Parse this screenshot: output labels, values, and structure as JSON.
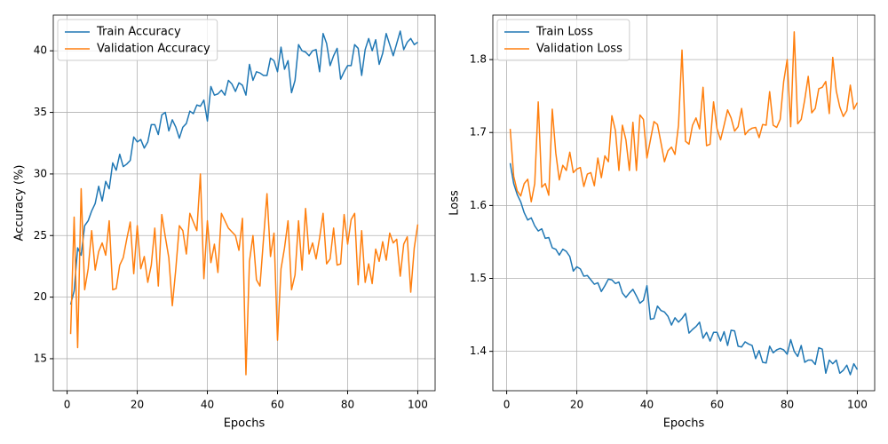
{
  "chart_data": [
    {
      "type": "line",
      "xlabel": "Epochs",
      "ylabel": "Accuracy (%)",
      "x": [
        1,
        2,
        3,
        4,
        5,
        6,
        7,
        8,
        9,
        10,
        11,
        12,
        13,
        14,
        15,
        16,
        17,
        18,
        19,
        20,
        21,
        22,
        23,
        24,
        25,
        26,
        27,
        28,
        29,
        30,
        31,
        32,
        33,
        34,
        35,
        36,
        37,
        38,
        39,
        40,
        41,
        42,
        43,
        44,
        45,
        46,
        47,
        48,
        49,
        50,
        51,
        52,
        53,
        54,
        55,
        56,
        57,
        58,
        59,
        60,
        61,
        62,
        63,
        64,
        65,
        66,
        67,
        68,
        69,
        70,
        71,
        72,
        73,
        74,
        75,
        76,
        77,
        78,
        79,
        80,
        81,
        82,
        83,
        84,
        85,
        86,
        87,
        88,
        89,
        90,
        91,
        92,
        93,
        94,
        95,
        96,
        97,
        98,
        99,
        100
      ],
      "series": [
        {
          "name": "Train Accuracy",
          "color": "#1f77b4",
          "values": [
            19.4,
            20.5,
            24.0,
            23.4,
            25.8,
            26.2,
            27.0,
            27.6,
            29.0,
            27.8,
            29.4,
            28.8,
            30.9,
            30.3,
            31.6,
            30.6,
            30.8,
            31.1,
            33.0,
            32.6,
            32.8,
            32.1,
            32.6,
            34.0,
            34.0,
            33.2,
            34.8,
            35.0,
            33.5,
            34.4,
            33.8,
            32.9,
            33.8,
            34.1,
            35.1,
            34.9,
            35.6,
            35.5,
            36.0,
            34.3,
            37.1,
            36.4,
            36.5,
            36.8,
            36.4,
            37.6,
            37.3,
            36.7,
            37.4,
            37.2,
            36.4,
            38.9,
            37.6,
            38.3,
            38.2,
            38.0,
            38.0,
            39.4,
            39.2,
            38.3,
            40.3,
            38.5,
            39.2,
            36.6,
            37.6,
            40.5,
            40.0,
            39.9,
            39.6,
            40.0,
            40.1,
            38.3,
            41.4,
            40.6,
            38.8,
            39.6,
            40.2,
            37.7,
            38.3,
            38.8,
            38.8,
            40.5,
            40.2,
            38.0,
            40.1,
            41.0,
            40.0,
            40.9,
            38.9,
            39.8,
            41.4,
            40.5,
            39.6,
            40.6,
            41.6,
            40.1,
            40.7,
            41.0,
            40.5,
            40.7
          ]
        },
        {
          "name": "Validation Accuracy",
          "color": "#ff7f0e",
          "values": [
            17.0,
            26.5,
            15.9,
            28.8,
            20.6,
            22.3,
            25.4,
            22.2,
            23.7,
            24.4,
            23.4,
            26.2,
            20.6,
            20.7,
            22.6,
            23.2,
            24.7,
            26.1,
            21.9,
            25.8,
            22.3,
            23.3,
            21.2,
            22.6,
            25.6,
            20.9,
            26.7,
            24.9,
            23.2,
            19.3,
            22.3,
            25.8,
            25.4,
            23.5,
            26.8,
            26.1,
            25.4,
            30.0,
            21.5,
            26.2,
            22.8,
            24.3,
            22.0,
            26.8,
            26.2,
            25.6,
            25.3,
            25.0,
            23.8,
            26.4,
            13.7,
            22.9,
            25.0,
            21.4,
            20.9,
            24.7,
            28.4,
            23.3,
            25.2,
            16.5,
            22.3,
            24.0,
            26.2,
            20.6,
            21.8,
            26.2,
            22.2,
            27.2,
            23.5,
            24.4,
            23.1,
            24.8,
            26.8,
            22.7,
            23.1,
            25.6,
            22.6,
            22.7,
            26.7,
            24.3,
            26.3,
            26.8,
            21.0,
            25.4,
            21.2,
            22.7,
            21.1,
            23.9,
            22.9,
            24.5,
            23.0,
            25.2,
            24.4,
            24.7,
            21.7,
            24.3,
            24.9,
            20.4,
            24.0,
            25.9
          ]
        }
      ],
      "xlim": [
        -3.95,
        104.95
      ],
      "ylim": [
        12.4,
        42.9
      ],
      "xticks": [
        0,
        20,
        40,
        60,
        80,
        100
      ],
      "yticks": [
        15,
        20,
        25,
        30,
        35,
        40
      ],
      "grid": true,
      "legend": "upper left"
    },
    {
      "type": "line",
      "xlabel": "Epochs",
      "ylabel": "Loss",
      "x": [
        1,
        2,
        3,
        4,
        5,
        6,
        7,
        8,
        9,
        10,
        11,
        12,
        13,
        14,
        15,
        16,
        17,
        18,
        19,
        20,
        21,
        22,
        23,
        24,
        25,
        26,
        27,
        28,
        29,
        30,
        31,
        32,
        33,
        34,
        35,
        36,
        37,
        38,
        39,
        40,
        41,
        42,
        43,
        44,
        45,
        46,
        47,
        48,
        49,
        50,
        51,
        52,
        53,
        54,
        55,
        56,
        57,
        58,
        59,
        60,
        61,
        62,
        63,
        64,
        65,
        66,
        67,
        68,
        69,
        70,
        71,
        72,
        73,
        74,
        75,
        76,
        77,
        78,
        79,
        80,
        81,
        82,
        83,
        84,
        85,
        86,
        87,
        88,
        89,
        90,
        91,
        92,
        93,
        94,
        95,
        96,
        97,
        98,
        99,
        100
      ],
      "series": [
        {
          "name": "Train Loss",
          "color": "#1f77b4",
          "values": [
            1.658,
            1.63,
            1.615,
            1.605,
            1.59,
            1.58,
            1.583,
            1.572,
            1.565,
            1.568,
            1.555,
            1.556,
            1.542,
            1.54,
            1.532,
            1.54,
            1.537,
            1.53,
            1.51,
            1.516,
            1.513,
            1.503,
            1.504,
            1.498,
            1.492,
            1.494,
            1.482,
            1.49,
            1.499,
            1.498,
            1.493,
            1.495,
            1.48,
            1.474,
            1.48,
            1.485,
            1.476,
            1.466,
            1.47,
            1.49,
            1.444,
            1.445,
            1.462,
            1.456,
            1.454,
            1.448,
            1.436,
            1.446,
            1.44,
            1.445,
            1.452,
            1.425,
            1.43,
            1.434,
            1.44,
            1.418,
            1.426,
            1.414,
            1.426,
            1.426,
            1.414,
            1.427,
            1.408,
            1.429,
            1.428,
            1.407,
            1.406,
            1.413,
            1.41,
            1.408,
            1.39,
            1.401,
            1.385,
            1.384,
            1.407,
            1.398,
            1.402,
            1.404,
            1.402,
            1.396,
            1.416,
            1.4,
            1.393,
            1.408,
            1.385,
            1.388,
            1.388,
            1.382,
            1.405,
            1.403,
            1.37,
            1.388,
            1.383,
            1.388,
            1.37,
            1.374,
            1.381,
            1.368,
            1.383,
            1.375
          ]
        },
        {
          "name": "Validation Loss",
          "color": "#ff7f0e",
          "values": [
            1.705,
            1.64,
            1.62,
            1.613,
            1.63,
            1.636,
            1.605,
            1.63,
            1.742,
            1.625,
            1.63,
            1.614,
            1.732,
            1.672,
            1.635,
            1.655,
            1.648,
            1.673,
            1.645,
            1.65,
            1.652,
            1.626,
            1.643,
            1.645,
            1.627,
            1.665,
            1.638,
            1.668,
            1.66,
            1.723,
            1.703,
            1.648,
            1.71,
            1.69,
            1.648,
            1.714,
            1.648,
            1.724,
            1.718,
            1.665,
            1.69,
            1.715,
            1.711,
            1.686,
            1.66,
            1.675,
            1.68,
            1.67,
            1.71,
            1.813,
            1.688,
            1.684,
            1.71,
            1.72,
            1.705,
            1.762,
            1.682,
            1.684,
            1.742,
            1.705,
            1.69,
            1.71,
            1.731,
            1.72,
            1.702,
            1.708,
            1.733,
            1.697,
            1.703,
            1.706,
            1.707,
            1.693,
            1.711,
            1.71,
            1.756,
            1.71,
            1.707,
            1.718,
            1.77,
            1.8,
            1.708,
            1.838,
            1.712,
            1.718,
            1.745,
            1.777,
            1.727,
            1.733,
            1.76,
            1.762,
            1.77,
            1.726,
            1.803,
            1.757,
            1.735,
            1.722,
            1.73,
            1.765,
            1.732,
            1.741
          ]
        }
      ],
      "xlim": [
        -3.95,
        104.95
      ],
      "ylim": [
        1.346,
        1.861
      ],
      "xticks": [
        0,
        20,
        40,
        60,
        80,
        100
      ],
      "yticks": [
        1.4,
        1.5,
        1.6,
        1.7,
        1.8
      ],
      "grid": true,
      "legend": "upper left"
    }
  ]
}
